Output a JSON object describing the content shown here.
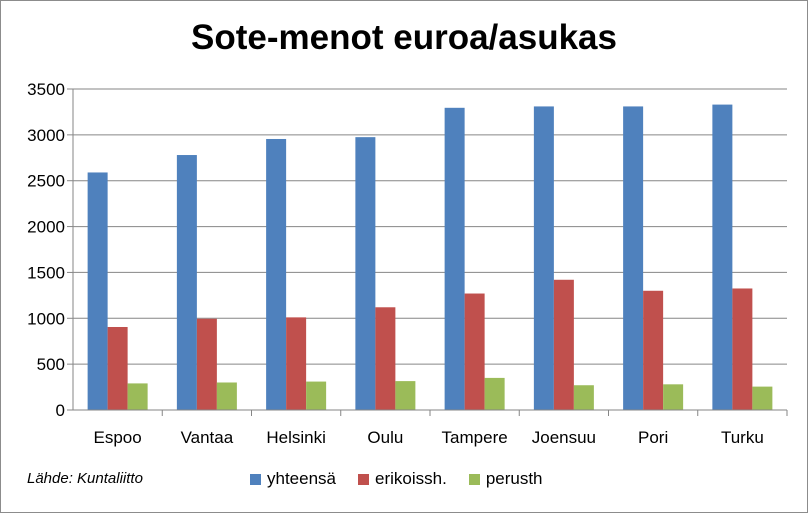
{
  "chart_data": {
    "type": "bar",
    "title": "Sote-menot euroa/asukas",
    "xlabel": "",
    "ylabel": "",
    "categories": [
      "Espoo",
      "Vantaa",
      "Helsinki",
      "Oulu",
      "Tampere",
      "Joensuu",
      "Pori",
      "Turku"
    ],
    "series": [
      {
        "name": "yhteensä",
        "color": "#4f81bd",
        "values": [
          2590,
          2780,
          2955,
          2975,
          3295,
          3310,
          3310,
          3330
        ]
      },
      {
        "name": "erikoissh.",
        "color": "#c0504d",
        "values": [
          905,
          995,
          1010,
          1120,
          1270,
          1420,
          1300,
          1325
        ]
      },
      {
        "name": "perusth",
        "color": "#9bbb59",
        "values": [
          290,
          300,
          310,
          315,
          350,
          270,
          280,
          255
        ]
      }
    ],
    "ylim": [
      0,
      3500
    ],
    "yticks": [
      0,
      500,
      1000,
      1500,
      2000,
      2500,
      3000,
      3500
    ],
    "grid": true,
    "legend_position": "bottom"
  },
  "source_note": "Lähde: Kuntaliitto"
}
